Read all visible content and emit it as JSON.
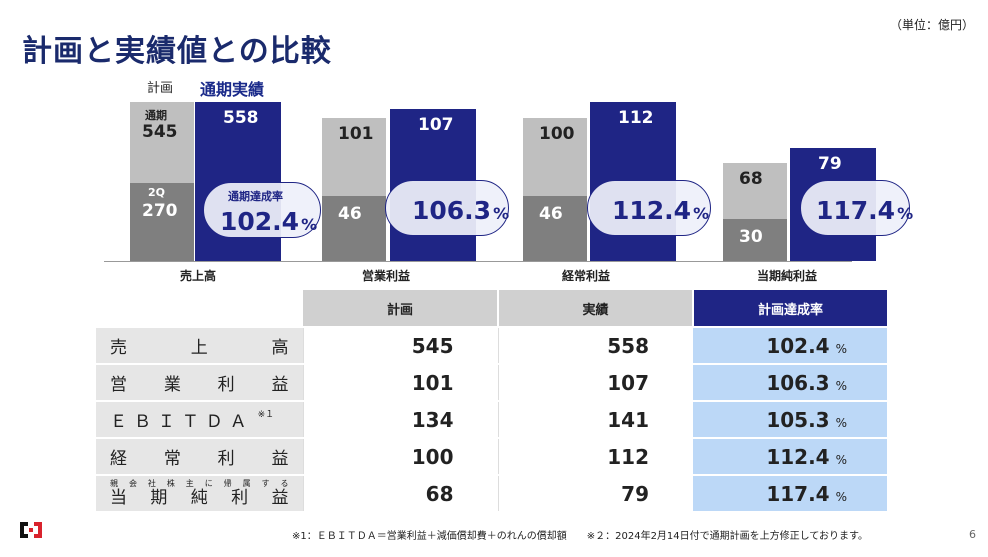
{
  "title": "計画と実績値との比較",
  "unit": "（単位：億円）",
  "chart_data": {
    "type": "bar",
    "categories": [
      "売上高",
      "営業利益",
      "経常利益",
      "当期純利益"
    ],
    "series": [
      {
        "name": "計画",
        "values": [
          545,
          101,
          100,
          68
        ]
      },
      {
        "name": "通期実績",
        "values": [
          558,
          107,
          112,
          79
        ]
      }
    ],
    "plan_2q_values": [
      270,
      46,
      46,
      30
    ],
    "achievement_rates": [
      "102.4",
      "106.3",
      "112.4",
      "117.4"
    ],
    "labels": {
      "plan": "計画",
      "actual": "通期実績",
      "full_year": "通期",
      "q2": "2Q",
      "achievement": "通期達成率",
      "pct": "%"
    }
  },
  "table": {
    "headers": [
      "計画",
      "実績",
      "計画達成率"
    ],
    "rows": [
      {
        "label_chars": [
          "売",
          "上",
          "高"
        ],
        "plan": "545",
        "actual": "558",
        "rate": "102.4"
      },
      {
        "label_chars": [
          "営",
          "業",
          "利",
          "益"
        ],
        "plan": "101",
        "actual": "107",
        "rate": "106.3"
      },
      {
        "label_chars": [
          "Ｅ",
          "Ｂ",
          "Ｉ",
          "Ｔ",
          "Ｄ",
          "Ａ"
        ],
        "label_note": "※１",
        "plan": "134",
        "actual": "141",
        "rate": "105.3"
      },
      {
        "label_chars": [
          "経",
          "常",
          "利",
          "益"
        ],
        "plan": "100",
        "actual": "112",
        "rate": "112.4"
      },
      {
        "label_top_chars": [
          "親",
          "会",
          "社",
          "株",
          "主",
          "に",
          "帰",
          "属",
          "す",
          "る"
        ],
        "label_chars": [
          "当",
          "期",
          "純",
          "利",
          "益"
        ],
        "plan": "68",
        "actual": "79",
        "rate": "117.4"
      }
    ],
    "pct": "%"
  },
  "footnote": "※1：ＥＢＩＴＤＡ＝営業利益＋減価償却費＋のれんの償却額　　※２：2024年2月14日付で通期計画を上方修正しております。",
  "page_number": "6",
  "colors": {
    "navy": "#1f2585",
    "light_gray": "#bfbfbf",
    "dark_gray": "#7f7f7f",
    "rate_bg": "#bcd8f7",
    "title": "#1a2a6c"
  }
}
